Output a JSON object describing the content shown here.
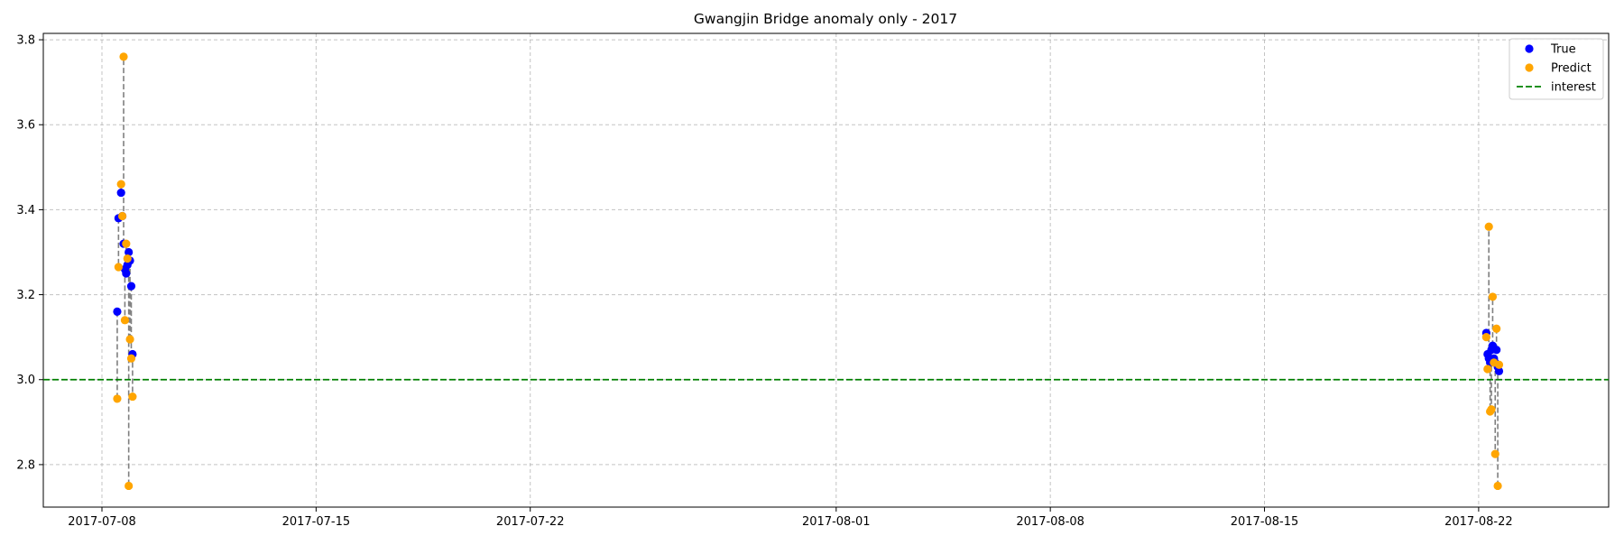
{
  "chart_data": {
    "type": "scatter",
    "title": "Gwangjin Bridge anomaly only - 2017",
    "xlabel": "",
    "ylabel": "",
    "x_axis_type": "date",
    "xlim": [
      "2017-07-06T02:00",
      "2017-08-26T06:00"
    ],
    "ylim": [
      2.7,
      3.815
    ],
    "x_ticks": [
      "2017-07-08",
      "2017-07-15",
      "2017-07-22",
      "2017-08-01",
      "2017-08-08",
      "2017-08-15",
      "2017-08-22"
    ],
    "y_ticks": [
      "2.8",
      "3.0",
      "3.2",
      "3.4",
      "3.6",
      "3.8"
    ],
    "grid": true,
    "legend_position": "top-right",
    "legend": [
      "True",
      "Predict",
      "interest"
    ],
    "colors": {
      "true": "#0000ff",
      "predict": "#ffa500",
      "interest": "#008000",
      "connector": "#7f7f7f",
      "grid": "#b0b0b0"
    },
    "interest_line": {
      "name": "interest",
      "y": 3.0
    },
    "points": [
      {
        "x": "2017-07-08T12:00",
        "true": 3.16,
        "predict": 2.955
      },
      {
        "x": "2017-07-08T13:00",
        "true": 3.38,
        "predict": 3.265
      },
      {
        "x": "2017-07-08T15:00",
        "true": 3.44,
        "predict": 3.46
      },
      {
        "x": "2017-07-08T16:00",
        "true": 3.385,
        "predict": 3.385
      },
      {
        "x": "2017-07-08T17:00",
        "true": 3.32,
        "predict": 3.76
      },
      {
        "x": "2017-07-08T18:00",
        "true": 3.26,
        "predict": 3.14
      },
      {
        "x": "2017-07-08T19:00",
        "true": 3.25,
        "predict": 3.32
      },
      {
        "x": "2017-07-08T20:00",
        "true": 3.27,
        "predict": 3.285
      },
      {
        "x": "2017-07-08T21:00",
        "true": 3.3,
        "predict": 2.75
      },
      {
        "x": "2017-07-08T22:00",
        "true": 3.28,
        "predict": 3.095
      },
      {
        "x": "2017-07-08T23:00",
        "true": 3.22,
        "predict": 3.05
      },
      {
        "x": "2017-07-09T00:00",
        "true": 3.06,
        "predict": 2.96
      },
      {
        "x": "2017-08-22T06:00",
        "true": 3.11,
        "predict": 3.1
      },
      {
        "x": "2017-08-22T07:00",
        "true": 3.06,
        "predict": 3.025
      },
      {
        "x": "2017-08-22T08:00",
        "true": 3.05,
        "predict": 3.36
      },
      {
        "x": "2017-08-22T09:00",
        "true": 3.04,
        "predict": 2.925
      },
      {
        "x": "2017-08-22T10:00",
        "true": 3.07,
        "predict": 2.93
      },
      {
        "x": "2017-08-22T11:00",
        "true": 3.08,
        "predict": 3.195
      },
      {
        "x": "2017-08-22T12:00",
        "true": 3.05,
        "predict": 3.04
      },
      {
        "x": "2017-08-22T13:00",
        "true": 3.04,
        "predict": 2.825
      },
      {
        "x": "2017-08-22T14:00",
        "true": 3.07,
        "predict": 3.12
      },
      {
        "x": "2017-08-22T15:00",
        "true": 3.03,
        "predict": 2.75
      },
      {
        "x": "2017-08-22T16:00",
        "true": 3.02,
        "predict": 3.035
      }
    ]
  }
}
